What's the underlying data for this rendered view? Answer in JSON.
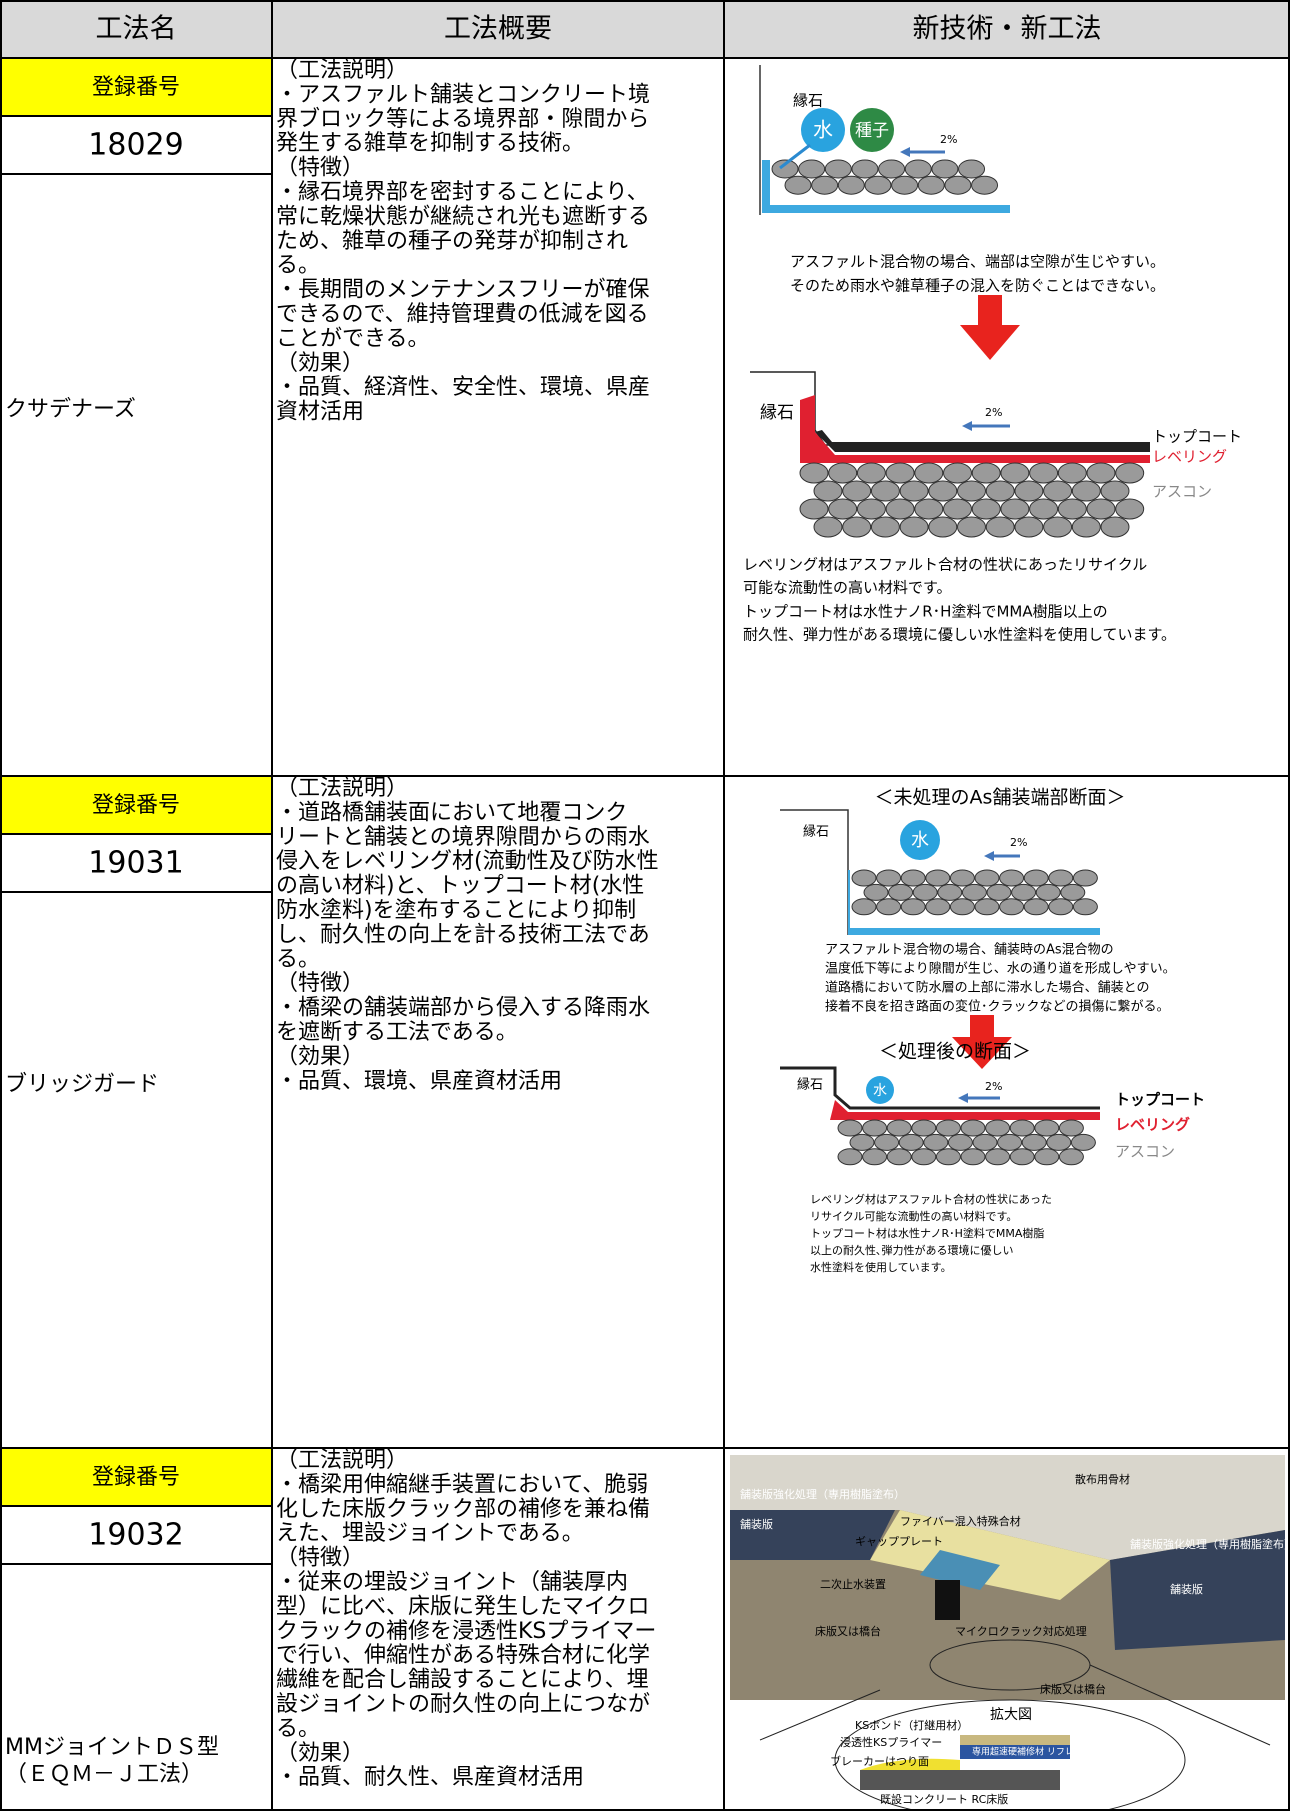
{
  "table": {
    "headers": [
      "工法名",
      "工法概要",
      "新技術・新工法"
    ],
    "rows": [
      {
        "reg_label": "登録番号",
        "reg_no": "18029",
        "name": [
          "クサデナーズ"
        ],
        "summary": [
          "（工法説明）",
          "・アスファルト舗装とコンクリート境",
          "界ブロック等による境界部・隙間から",
          "発生する雑草を抑制する技術。",
          "（特徴）",
          "・縁石境界部を密封することにより、",
          "常に乾燥状態が継続され光も遮断する",
          "ため、雑草の種子の発芽が抑制され",
          "る。",
          "・長期間のメンテナンスフリーが確保",
          "できるので、維持管理費の低減を図る",
          "ことができる。",
          "（効果）",
          "・品質、経済性、安全性、環境、県産",
          "資材活用"
        ],
        "figure": {
          "curb": "縁石",
          "water": "水",
          "seed": "種子",
          "slope": "2%",
          "caption_before": [
            "アスファルト混合物の場合、端部は空隙が生じやすい。",
            "そのため雨水や雑草種子の混入を防ぐことはできない。"
          ],
          "curb_after": "縁石",
          "slope_after": "2%",
          "topcoat": "トップコート",
          "leveling": "レベリング",
          "ascon": "アスコン",
          "caption_after": [
            "レベリング材はアスファルト合材の性状にあったリサイクル",
            "可能な流動性の高い材料です。",
            "トップコート材は水性ナノR･H塗料でMMA樹脂以上の",
            "耐久性、弾力性がある環境に優しい水性塗料を使用しています。"
          ]
        }
      },
      {
        "reg_label": "登録番号",
        "reg_no": "19031",
        "name": [
          "ブリッジガード"
        ],
        "summary": [
          "（工法説明）",
          "・道路橋舗装面において地覆コンク",
          "リートと舗装との境界隙間からの雨水",
          "侵入をレベリング材(流動性及び防水性",
          "の高い材料)と、トップコート材(水性",
          "防水塗料)を塗布することにより抑制",
          "し、耐久性の向上を計る技術工法であ",
          "る。",
          "（特徴）",
          "・橋梁の舗装端部から侵入する降雨水",
          "を遮断する工法である。",
          "（効果）",
          "・品質、環境、県産資材活用"
        ],
        "figure": {
          "title_before": "＜未処理のAs舗装端部断面＞",
          "curb": "縁石",
          "water": "水",
          "slope": "2%",
          "caption_before": [
            "アスファルト混合物の場合、舗装時のAs混合物の",
            "温度低下等により隙間が生じ、水の通り道を形成しやすい。",
            "道路橋において防水層の上部に滞水した場合、舗装との",
            "接着不良を招き路面の変位･クラックなどの損傷に繋がる。"
          ],
          "title_after": "＜処理後の断面＞",
          "curb_after": "縁石",
          "water_after": "水",
          "slope_after": "2%",
          "topcoat": "トップコート",
          "leveling": "レベリング",
          "ascon": "アスコン",
          "caption_after": [
            "レベリング材はアスファルト合材の性状にあった",
            "リサイクル可能な流動性の高い材料です。",
            "トップコート材は水性ナノR･H塗料でMMA樹脂",
            "以上の耐久性､弾力性がある環境に優しい",
            "水性塗料を使用しています。"
          ]
        }
      },
      {
        "reg_label": "登録番号",
        "reg_no": "19032",
        "name": [
          "MMジョイントＤＳ型",
          "（ＥＱＭ－Ｊ工法）"
        ],
        "summary": [
          "（工法説明）",
          "・橋梁用伸縮継手装置において、脆弱",
          "化した床版クラック部の補修を兼ね備",
          "えた、埋設ジョイントである。",
          "（特徴）",
          "・従来の埋設ジョイント（舗装厚内",
          "型）に比べ、床版に発生したマイクロ",
          "クラックの補修を浸透性KSプライマー",
          "で行い、伸縮性がある特殊合材に化学",
          "繊維を配合し舗設することにより、埋",
          "設ジョイントの耐久性の向上につなが",
          "る。",
          "（効果）",
          "・品質、耐久性、県産資材活用"
        ],
        "figure": {
          "aggregate": "散布用骨材",
          "reinforce_left": "舗装版強化処理（専用樹脂塗布）",
          "pavement_left": "舗装版",
          "fiber_mix": "ファイバー混入特殊合材",
          "gap_plate": "ギャッププレート",
          "reinforce_right": "舗装版強化処理（専用樹脂塗布）",
          "pavement_right": "舗装版",
          "secondary_seal": "二次止水装置",
          "microcrack": "マイクロクラック対応処理",
          "slab_left": "床版又は橋台",
          "slab_right": "床版又は橋台",
          "zoom": "拡大図",
          "ks_bond": "KSボンド（打継用材）",
          "ks_primer": "浸透性KSプライマー",
          "breaker": "ブレーカーはつり面",
          "repair": "専用超速硬補修材 リフレモルセット SF",
          "existing": "既設コンクリート RC床版"
        }
      }
    ]
  }
}
